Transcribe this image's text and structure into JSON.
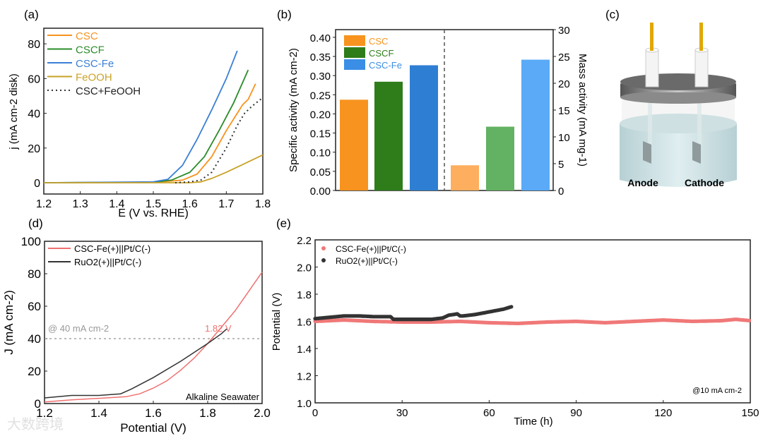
{
  "panel_labels": {
    "a": "(a)",
    "b": "(b)",
    "c": "(c)",
    "d": "(d)",
    "e": "(e)"
  },
  "watermark": "大数跨境",
  "chart_data": [
    {
      "id": "a",
      "type": "line",
      "xlabel": "E (V vs. RHE)",
      "ylabel": "j (mA cm-2 disk)",
      "xlim": [
        1.2,
        1.8
      ],
      "ylim": [
        -6.5,
        89
      ],
      "xticks": [
        "1.2",
        "1.3",
        "1.4",
        "1.5",
        "1.6",
        "1.7",
        "1.8"
      ],
      "yticks": [
        "0",
        "20",
        "40",
        "60",
        "80"
      ],
      "legend_position": "top-left",
      "series": [
        {
          "name": "CSC",
          "color": "#f7931e",
          "dash": false,
          "x": [
            1.2,
            1.5,
            1.58,
            1.62,
            1.66,
            1.7,
            1.73,
            1.745,
            1.76,
            1.78
          ],
          "y": [
            0,
            0.2,
            1.5,
            5,
            15,
            30,
            40,
            45,
            48,
            57
          ]
        },
        {
          "name": "CSCF",
          "color": "#2a8c2a",
          "dash": false,
          "x": [
            1.2,
            1.5,
            1.55,
            1.6,
            1.64,
            1.68,
            1.72,
            1.76
          ],
          "y": [
            0,
            0.3,
            1.5,
            6,
            15,
            30,
            46,
            65
          ]
        },
        {
          "name": "CSC-Fe",
          "color": "#3a7fd5",
          "dash": false,
          "x": [
            1.2,
            1.5,
            1.54,
            1.58,
            1.62,
            1.66,
            1.7,
            1.73
          ],
          "y": [
            0,
            0.5,
            2,
            10,
            25,
            42,
            60,
            76
          ]
        },
        {
          "name": "FeOOH",
          "color": "#c9a227",
          "dash": false,
          "x": [
            1.2,
            1.6,
            1.63,
            1.66,
            1.7,
            1.75,
            1.8
          ],
          "y": [
            0,
            0,
            0.5,
            2.5,
            6,
            11,
            16
          ]
        },
        {
          "name": "CSC+FeOOH",
          "color": "#333333",
          "dash": true,
          "x": [
            1.56,
            1.6,
            1.63,
            1.66,
            1.7,
            1.73,
            1.75,
            1.77,
            1.8
          ],
          "y": [
            0,
            0.5,
            1.5,
            6,
            20,
            33,
            40,
            44,
            49
          ]
        }
      ]
    },
    {
      "id": "b",
      "type": "bar",
      "ylabel": "Specific activity (mA cm-2)",
      "y2label": "Mass activity (mA mg-1)",
      "ylim": [
        0,
        0.42
      ],
      "y2lim": [
        0,
        30
      ],
      "yticks": [
        "0.00",
        "0.05",
        "0.10",
        "0.15",
        "0.20",
        "0.25",
        "0.30",
        "0.35",
        "0.40"
      ],
      "y2ticks": [
        "0",
        "5",
        "10",
        "15",
        "20",
        "25",
        "30"
      ],
      "legend_position": "top-left",
      "categories": [
        "CSC",
        "CSCF",
        "CSC-Fe"
      ],
      "legend_colors": [
        "#f7931e",
        "#2e7d1a",
        "#3a8ee6"
      ],
      "series": [
        {
          "name": "Specific activity",
          "axis": "left",
          "values": [
            0.237,
            0.284,
            0.327
          ],
          "colors": [
            "#f7931e",
            "#2e7d1a",
            "#2e7fd3"
          ]
        },
        {
          "name": "Mass activity",
          "axis": "right",
          "values": [
            4.7,
            11.9,
            24.4
          ],
          "colors": [
            "#fdae5e",
            "#63b162",
            "#5aaaf7"
          ]
        }
      ]
    },
    {
      "id": "d",
      "type": "line",
      "xlabel": "Potential (V)",
      "ylabel": "J (mA cm-2)",
      "xlim": [
        1.2,
        2.0
      ],
      "ylim": [
        0,
        100
      ],
      "xticks": [
        "1.2",
        "1.4",
        "1.6",
        "1.8",
        "2.0"
      ],
      "yticks": [
        "0",
        "20",
        "40",
        "60",
        "80",
        "100"
      ],
      "legend_position": "top-left",
      "annotations": {
        "reference": "@ 40 mA cm-2",
        "reference_value": 40,
        "crossing": "1.82 V",
        "electrolyte": "Alkaline Seawater"
      },
      "series": [
        {
          "name": "CSC-Fe(+)||Pt/C(-)",
          "color": "#f07070",
          "x": [
            1.2,
            1.3,
            1.4,
            1.5,
            1.55,
            1.6,
            1.65,
            1.7,
            1.75,
            1.8,
            1.85,
            1.9,
            1.95,
            2.0
          ],
          "y": [
            1,
            2.3,
            3.2,
            4.2,
            6,
            9.5,
            14,
            20.5,
            28,
            37,
            47,
            57,
            69,
            81
          ]
        },
        {
          "name": "RuO2(+)||Pt/C(-)",
          "color": "#333333",
          "x": [
            1.2,
            1.3,
            1.4,
            1.48,
            1.52,
            1.6,
            1.7,
            1.8,
            1.85,
            1.87
          ],
          "y": [
            3.5,
            5,
            5,
            6,
            9,
            16,
            26,
            37,
            43,
            46
          ]
        }
      ]
    },
    {
      "id": "e",
      "type": "scatter",
      "xlabel": "Time (h)",
      "ylabel": "Potential (V)",
      "xlim": [
        0,
        150
      ],
      "ylim": [
        1.0,
        2.2
      ],
      "xticks": [
        "0",
        "30",
        "60",
        "90",
        "120",
        "150"
      ],
      "yticks": [
        "1.0",
        "1.2",
        "1.4",
        "1.6",
        "1.8",
        "2.0",
        "2.2"
      ],
      "legend_position": "top-left",
      "annotation": "@10 mA cm-2",
      "series": [
        {
          "name": "CSC-Fe(+)||Pt/C(-)",
          "color": "#f07878",
          "x": [
            0,
            10,
            20,
            30,
            40,
            50,
            60,
            70,
            80,
            90,
            100,
            110,
            120,
            130,
            140,
            145,
            150
          ],
          "y": [
            1.6,
            1.61,
            1.6,
            1.595,
            1.595,
            1.6,
            1.59,
            1.585,
            1.595,
            1.6,
            1.59,
            1.6,
            1.61,
            1.6,
            1.605,
            1.615,
            1.605
          ]
        },
        {
          "name": "RuO2(+)||Pt/C(-)",
          "color": "#333333",
          "x": [
            0,
            5,
            10,
            15,
            20,
            26,
            27,
            35,
            40,
            44,
            46,
            49,
            50,
            51,
            55,
            60,
            65,
            68
          ],
          "y": [
            1.62,
            1.63,
            1.64,
            1.64,
            1.635,
            1.635,
            1.615,
            1.615,
            1.615,
            1.625,
            1.645,
            1.655,
            1.64,
            1.64,
            1.65,
            1.67,
            1.69,
            1.71
          ]
        }
      ]
    }
  ],
  "cell_diagram": {
    "anode_label": "Anode",
    "cathode_label": "Cathode"
  }
}
